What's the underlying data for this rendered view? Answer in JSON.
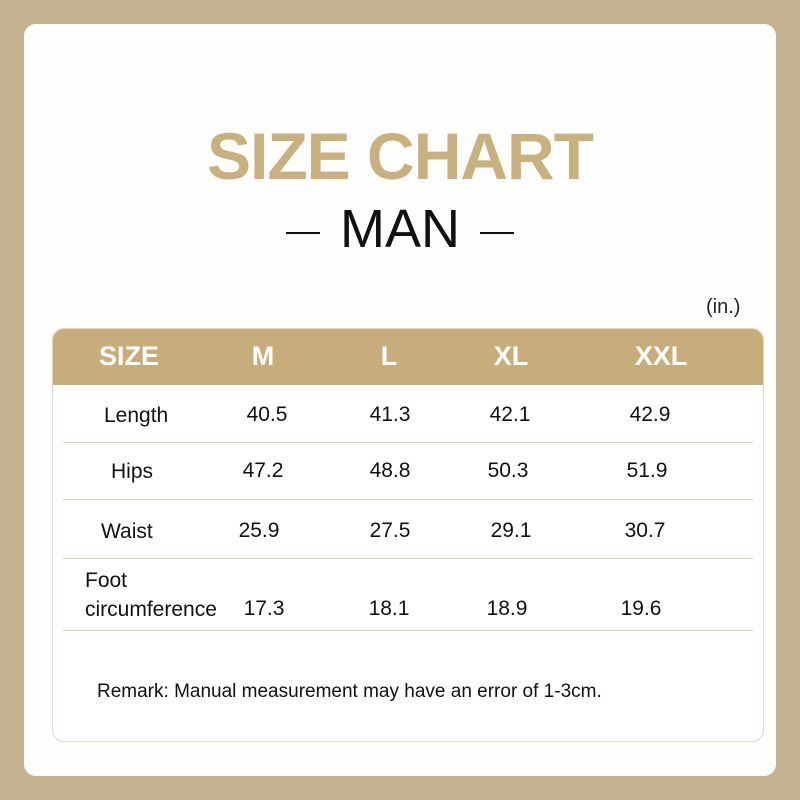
{
  "title": "SIZE CHART",
  "subtitle": "MAN",
  "unit": "(in.)",
  "colors": {
    "background": "#c4b291",
    "accent": "#c8ad7c",
    "title": "#c8b07f"
  },
  "table": {
    "headers": [
      "SIZE",
      "M",
      "L",
      "XL",
      "XXL"
    ],
    "rows": [
      {
        "label": "Length",
        "values": [
          "40.5",
          "41.3",
          "42.1",
          "42.9"
        ]
      },
      {
        "label": "Hips",
        "values": [
          "47.2",
          "48.8",
          "50.3",
          "51.9"
        ]
      },
      {
        "label": "Waist",
        "values": [
          "25.9",
          "27.5",
          "29.1",
          "30.7"
        ]
      },
      {
        "label": "Foot circumference",
        "label_lines": [
          "Foot",
          "circumference"
        ],
        "values": [
          "17.3",
          "18.1",
          "18.9",
          "19.6"
        ]
      }
    ]
  },
  "remark": "Remark: Manual measurement may have an error of 1-3cm."
}
